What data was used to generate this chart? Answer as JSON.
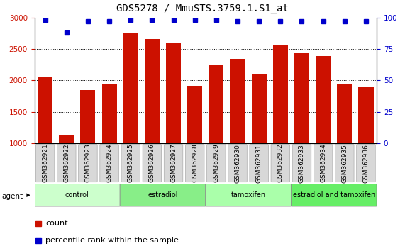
{
  "title": "GDS5278 / MmuSTS.3759.1.S1_at",
  "samples": [
    "GSM362921",
    "GSM362922",
    "GSM362923",
    "GSM362924",
    "GSM362925",
    "GSM362926",
    "GSM362927",
    "GSM362928",
    "GSM362929",
    "GSM362930",
    "GSM362931",
    "GSM362932",
    "GSM362933",
    "GSM362934",
    "GSM362935",
    "GSM362936"
  ],
  "counts": [
    2060,
    1120,
    1840,
    1950,
    2750,
    2660,
    2590,
    1910,
    2240,
    2340,
    2110,
    2555,
    2430,
    2390,
    1930,
    1890
  ],
  "percentile_ranks": [
    98,
    88,
    97,
    97,
    98,
    98,
    98,
    98,
    98,
    97,
    97,
    97,
    97,
    97,
    97,
    97
  ],
  "bar_color": "#cc1100",
  "dot_color": "#0000cc",
  "ylim_left": [
    1000,
    3000
  ],
  "ylim_right": [
    0,
    100
  ],
  "yticks_left": [
    1000,
    1500,
    2000,
    2500,
    3000
  ],
  "yticks_right": [
    0,
    25,
    50,
    75,
    100
  ],
  "groups": [
    {
      "label": "control",
      "start": 0,
      "end": 4,
      "color": "#ccffcc"
    },
    {
      "label": "estradiol",
      "start": 4,
      "end": 8,
      "color": "#88ee88"
    },
    {
      "label": "tamoxifen",
      "start": 8,
      "end": 12,
      "color": "#aaffaa"
    },
    {
      "label": "estradiol and tamoxifen",
      "start": 12,
      "end": 16,
      "color": "#66ee66"
    }
  ],
  "agent_label": "agent",
  "legend_count_label": "count",
  "legend_percentile_label": "percentile rank within the sample",
  "grid_color": "black",
  "title_fontsize": 10,
  "tick_label_fontsize": 6.5,
  "axis_label_color_left": "#cc1100",
  "axis_label_color_right": "#0000cc",
  "bg_color": "#ffffff",
  "plot_bg_color": "#ffffff",
  "tickbox_color": "#d8d8d8"
}
